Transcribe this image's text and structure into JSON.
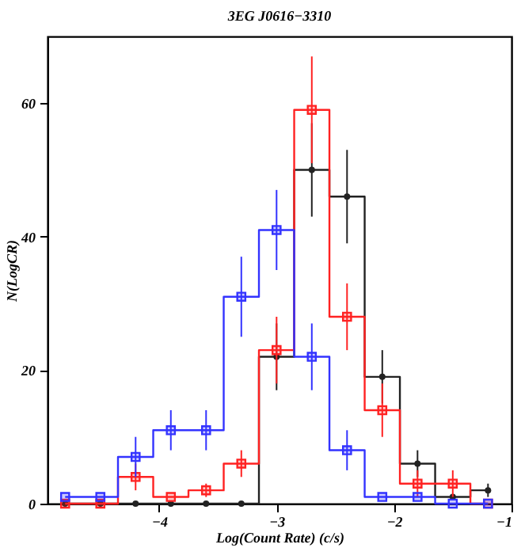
{
  "chart_data": {
    "type": "step",
    "title": "3EG J0616−3310",
    "xlabel": "Log(Count Rate) (c/s)",
    "ylabel": "N(LogCR)",
    "x": [
      -4.8,
      -4.5,
      -4.2,
      -3.9,
      -3.6,
      -3.3,
      -3.0,
      -2.7,
      -2.4,
      -2.1,
      -1.8,
      -1.5,
      -1.2
    ],
    "series": [
      {
        "color": "#222222",
        "marker": "circle",
        "values": [
          0,
          0,
          0,
          0,
          0,
          0,
          22,
          50,
          46,
          19,
          6,
          1,
          2
        ],
        "errors": [
          null,
          null,
          null,
          null,
          null,
          null,
          5,
          7,
          7,
          4,
          2,
          null,
          1
        ]
      },
      {
        "color": "#ff2222",
        "marker": "square",
        "values": [
          0,
          0,
          4,
          1,
          2,
          6,
          23,
          59,
          28,
          14,
          3,
          3,
          0
        ],
        "errors": [
          null,
          null,
          2,
          null,
          1,
          2,
          5,
          8,
          5,
          4,
          2,
          2,
          null
        ]
      },
      {
        "color": "#3333ff",
        "marker": "square",
        "values": [
          1,
          1,
          7,
          11,
          11,
          31,
          41,
          22,
          8,
          1,
          1,
          0,
          0
        ],
        "errors": [
          null,
          null,
          3,
          3,
          3,
          6,
          6,
          5,
          3,
          null,
          null,
          null,
          null
        ]
      }
    ],
    "xlim": [
      -4.95,
      -1
    ],
    "ylim": [
      0,
      70
    ],
    "xticks": [
      {
        "value": -4,
        "label": "−4"
      },
      {
        "value": -3,
        "label": "−3"
      },
      {
        "value": -2,
        "label": "−2"
      },
      {
        "value": -1,
        "label": "−1"
      }
    ],
    "yticks": [
      0,
      20,
      40,
      60
    ],
    "grid": false
  }
}
